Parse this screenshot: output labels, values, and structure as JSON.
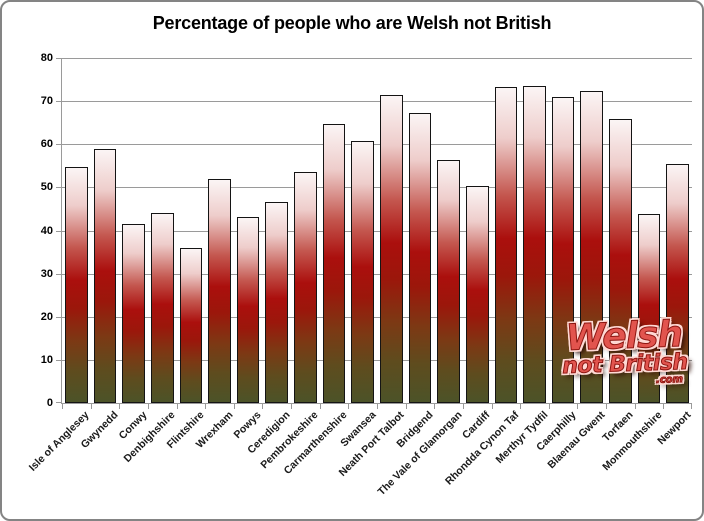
{
  "chart_data": {
    "type": "bar",
    "title": "Percentage of people who are Welsh not British",
    "xlabel": "",
    "ylabel": "",
    "ylim": [
      0,
      80
    ],
    "yticks": [
      0,
      10,
      20,
      30,
      40,
      50,
      60,
      70,
      80
    ],
    "grid": true,
    "legend": false,
    "categories": [
      "Isle of Anglesey",
      "Gwynedd",
      "Conwy",
      "Denbighshire",
      "Flintshire",
      "Wrexham",
      "Powys",
      "Ceredigion",
      "Pembrokeshire",
      "Carmarthenshire",
      "Swansea",
      "Neath Port Talbot",
      "Bridgend",
      "The Vale of Glamorgan",
      "Cardiff",
      "Rhondda Cynon Taf",
      "Merthyr Tydfil",
      "Caerphilly",
      "Blaenau Gwent",
      "Torfaen",
      "Monmouthshire",
      "Newport"
    ],
    "values": [
      54.7,
      58.9,
      41.5,
      44.1,
      35.9,
      52.0,
      43.2,
      46.7,
      53.5,
      64.6,
      60.7,
      71.5,
      67.2,
      56.3,
      50.3,
      73.3,
      73.4,
      71.0,
      72.3,
      65.9,
      43.9,
      55.4
    ]
  },
  "watermark": {
    "line1": "Welsh",
    "line2": "not British",
    "line3": ".com"
  },
  "colors": {
    "frame": "#848484",
    "grid": "#9a9a9a",
    "bar_border": "#141414",
    "bar_top": "#fbf5f5",
    "bar_red": "#ab0f0d",
    "bar_bottom": "#4c5328",
    "watermark": "#e2544e",
    "background": "#ffffff"
  }
}
